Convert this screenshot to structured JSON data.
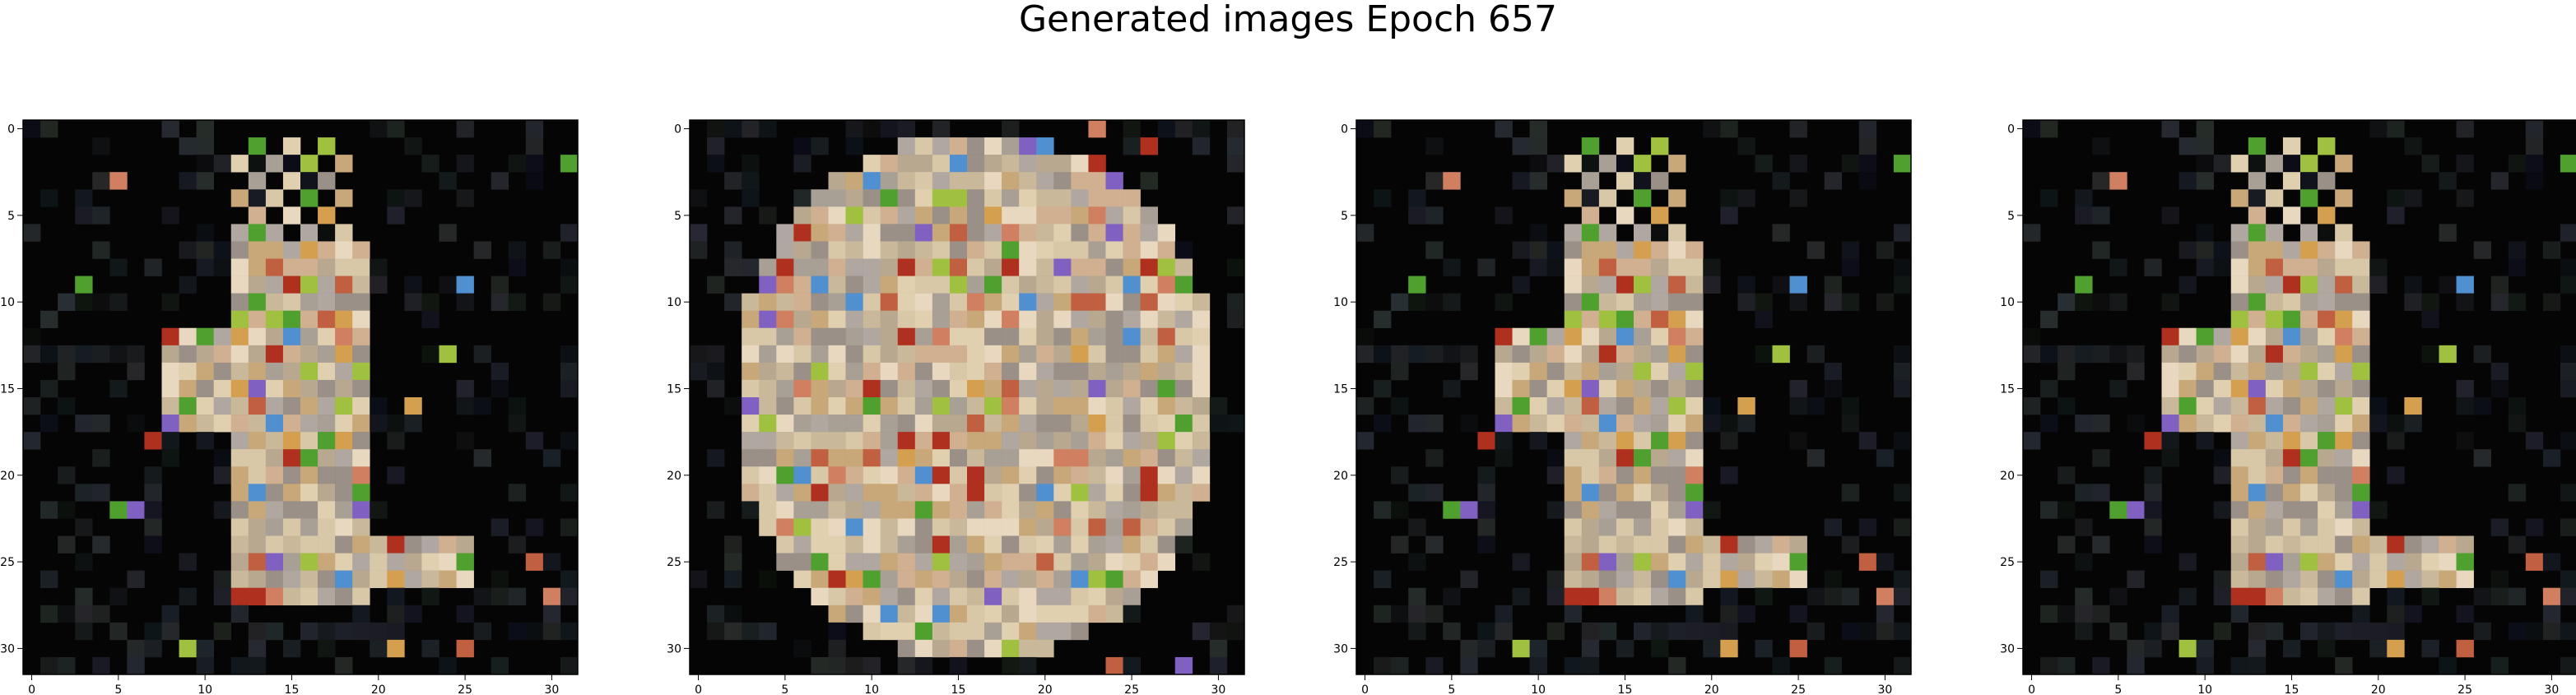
{
  "figure": {
    "title": "Generated images Epoch 657"
  },
  "panels": [
    {
      "name": "generated-image-1",
      "pattern": "A",
      "xticks": [
        "0",
        "5",
        "10",
        "15",
        "20",
        "25",
        "30"
      ],
      "yticks": [
        "0",
        "5",
        "10",
        "15",
        "20",
        "25",
        "30"
      ]
    },
    {
      "name": "generated-image-2",
      "pattern": "B",
      "xticks": [
        "0",
        "5",
        "10",
        "15",
        "20",
        "25",
        "30"
      ],
      "yticks": [
        "0",
        "5",
        "10",
        "15",
        "20",
        "25",
        "30"
      ]
    },
    {
      "name": "generated-image-3",
      "pattern": "A",
      "xticks": [
        "0",
        "5",
        "10",
        "15",
        "20",
        "25",
        "30"
      ],
      "yticks": [
        "0",
        "5",
        "10",
        "15",
        "20",
        "25",
        "30"
      ]
    },
    {
      "name": "generated-image-4",
      "pattern": "A",
      "xticks": [
        "0",
        "5",
        "10",
        "15",
        "20",
        "25",
        "30"
      ],
      "yticks": [
        "0",
        "5",
        "10",
        "15",
        "20",
        "25",
        "30"
      ]
    }
  ],
  "image_grid": {
    "rows": 32,
    "cols": 32
  },
  "colors": {
    "background_pixel": "#050505",
    "bright_palette": [
      "#c9b89a",
      "#d8c8a8",
      "#b8a890",
      "#e0d0b0",
      "#a89f95",
      "#c8a878",
      "#d0b090",
      "#b0a8a0",
      "#e8d8c0",
      "#9a9088"
    ],
    "accent_palette": [
      "#d4a050",
      "#8060c0",
      "#c06040",
      "#5090d0",
      "#50a030",
      "#b03020",
      "#a0c040",
      "#d08060"
    ]
  }
}
